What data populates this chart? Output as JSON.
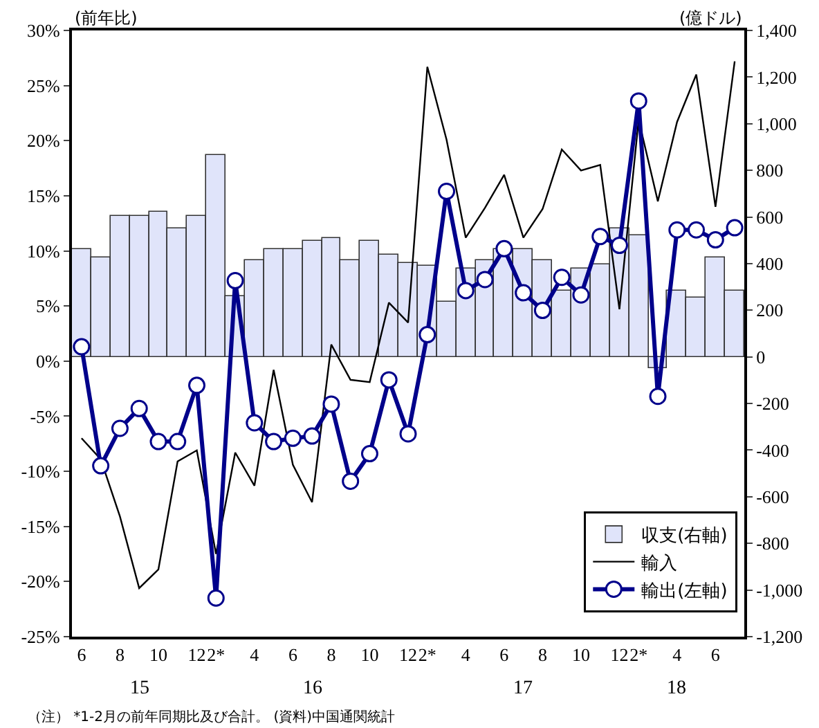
{
  "chart_data": {
    "type": "bar",
    "ylabel": "(前年比)",
    "y2label": "(億ドル)",
    "categories": [
      "6",
      null,
      "8",
      null,
      "10",
      null,
      "12",
      "2*",
      null,
      "4",
      null,
      "6",
      null,
      "8",
      null,
      "10",
      null,
      "12",
      "2*",
      null,
      "4",
      null,
      "6",
      null,
      "8",
      null,
      "10",
      null,
      "12",
      "2*",
      null,
      "4",
      null,
      "6",
      null
    ],
    "series": [
      {
        "name": "収支(右軸)",
        "type": "bar",
        "axis": "y2",
        "color": "#e0e4fa",
        "values": [
          462,
          428,
          602,
          602,
          620,
          553,
          606,
          863,
          261,
          413,
          462,
          462,
          498,
          511,
          413,
          498,
          437,
          403,
          389,
          237,
          379,
          413,
          462,
          462,
          413,
          286,
          379,
          395,
          551,
          521,
          -49,
          286,
          255,
          428,
          286
        ]
      },
      {
        "name": "輸出(左軸)",
        "type": "line",
        "marker": "circle",
        "color": "#00008b",
        "values": [
          1.3,
          -9.5,
          -6.1,
          -4.3,
          -7.3,
          -7.3,
          -2.2,
          -21.5,
          7.3,
          -5.6,
          -7.3,
          -7.0,
          -6.8,
          -3.9,
          -10.9,
          -8.4,
          -1.7,
          -6.6,
          2.4,
          15.4,
          6.4,
          7.4,
          10.2,
          6.2,
          4.6,
          7.6,
          6.0,
          11.3,
          10.5,
          23.6,
          -3.2,
          11.9,
          11.9,
          11.0,
          12.1
        ]
      },
      {
        "name": "輸入",
        "type": "line",
        "marker": "none",
        "color": "#000000",
        "values": [
          -7.0,
          -8.9,
          -14.1,
          -20.6,
          -18.9,
          -9.1,
          -8.1,
          -17.5,
          -8.3,
          -11.3,
          -0.8,
          -9.4,
          -12.8,
          1.5,
          -1.7,
          -1.9,
          5.3,
          3.5,
          26.7,
          20.1,
          11.2,
          13.9,
          16.9,
          11.2,
          13.8,
          19.2,
          17.3,
          17.8,
          4.7,
          21.9,
          14.5,
          21.7,
          26.0,
          14.0,
          27.2
        ]
      }
    ],
    "ylim": [
      -25,
      30
    ],
    "yticks": [
      {
        "value": -25,
        "label": "-25%"
      },
      {
        "value": -20,
        "label": "-20%"
      },
      {
        "value": -15,
        "label": "-15%"
      },
      {
        "value": -10,
        "label": "-10%"
      },
      {
        "value": -5,
        "label": "-5%"
      },
      {
        "value": 0,
        "label": "0%"
      },
      {
        "value": 5,
        "label": "5%"
      },
      {
        "value": 10,
        "label": "10%"
      },
      {
        "value": 15,
        "label": "15%"
      },
      {
        "value": 20,
        "label": "20%"
      },
      {
        "value": 25,
        "label": "25%"
      },
      {
        "value": 30,
        "label": "30%"
      }
    ],
    "y2lim": [
      -1200,
      1400
    ],
    "y2ticks": [
      {
        "value": -1200,
        "label": "-1,200"
      },
      {
        "value": -1000,
        "label": "-1,000"
      },
      -800,
      -600,
      -400,
      -200,
      0,
      200,
      400,
      600,
      800,
      {
        "value": 1000,
        "label": "1,000"
      },
      {
        "value": 1200,
        "label": "1,200"
      },
      {
        "value": 1400,
        "label": "1,400"
      }
    ],
    "grid": false,
    "legend": "bottom right",
    "annotations": [
      "15",
      "16",
      "17",
      "18",
      "（注） *1-2月の前年同期比及び合計。 (資料)中国通関統計"
    ]
  }
}
